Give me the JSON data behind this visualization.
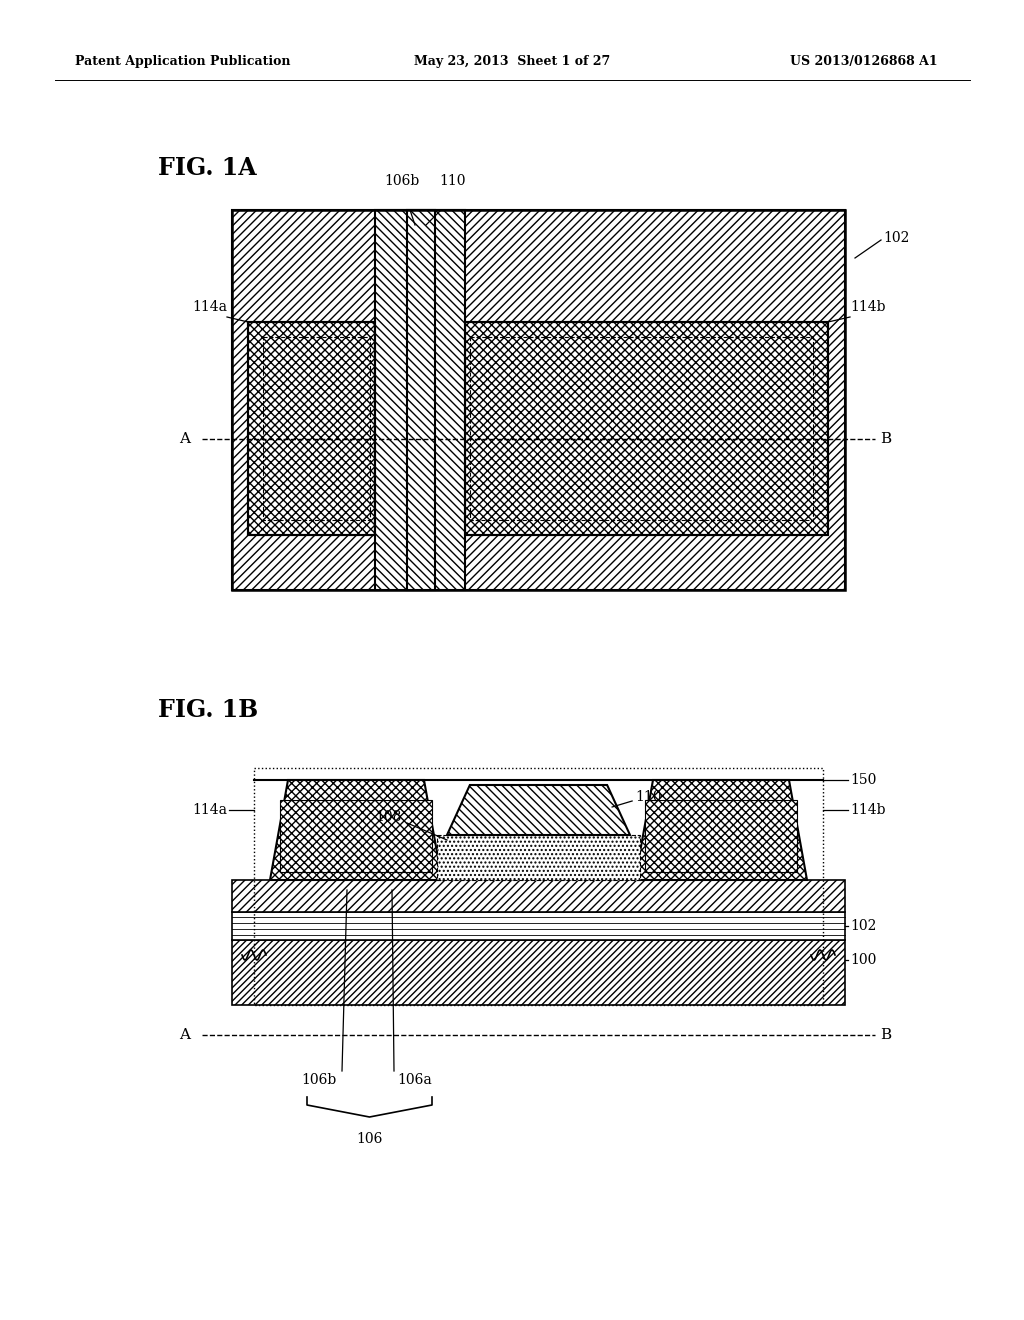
{
  "bg_color": "#ffffff",
  "header_left": "Patent Application Publication",
  "header_mid": "May 23, 2013  Sheet 1 of 27",
  "header_right": "US 2013/0126868 A1",
  "fig1a_label": "FIG. 1A",
  "fig1b_label": "FIG. 1B",
  "label_102_1a": "102",
  "label_106b_1a": "106b",
  "label_110_1a": "110",
  "label_114a_1a": "114a",
  "label_114b_1a": "114b",
  "label_A_1a": "A",
  "label_B_1a": "B",
  "label_110_1b": "110",
  "label_108_1b": "108",
  "label_114a_1b": "114a",
  "label_114b_1b": "114b",
  "label_150_1b": "150",
  "label_102_1b": "102",
  "label_100_1b": "100",
  "label_106b_1b": "106b",
  "label_106a_1b": "106a",
  "label_106_1b": "106",
  "label_A_1b": "A",
  "label_B_1b": "B"
}
